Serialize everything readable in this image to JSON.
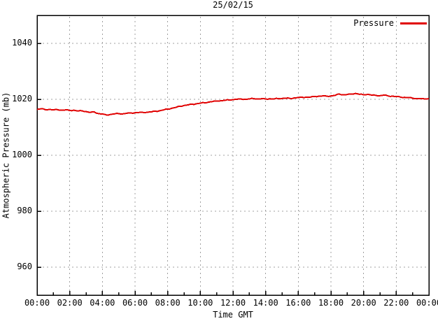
{
  "colors": {
    "line_red": "#e00000",
    "grid_gray": "#a0a0a0",
    "border_black": "#000000",
    "background": "#ffffff"
  },
  "chart_data": {
    "type": "line",
    "title": "25/02/15",
    "xlabel": "Time GMT",
    "ylabel": "Atmospheric Pressure (mb)",
    "legend_position": "top-right-inside",
    "grid": true,
    "xlim_hours": [
      0,
      24
    ],
    "ylim": [
      950,
      1050
    ],
    "yticks": [
      960,
      980,
      1000,
      1020,
      1040
    ],
    "xticks": [
      {
        "hour": 0,
        "label": "00:00"
      },
      {
        "hour": 2,
        "label": "02:00"
      },
      {
        "hour": 4,
        "label": "04:00"
      },
      {
        "hour": 6,
        "label": "06:00"
      },
      {
        "hour": 8,
        "label": "08:00"
      },
      {
        "hour": 10,
        "label": "10:00"
      },
      {
        "hour": 12,
        "label": "12:00"
      },
      {
        "hour": 14,
        "label": "14:00"
      },
      {
        "hour": 16,
        "label": "16:00"
      },
      {
        "hour": 18,
        "label": "18:00"
      },
      {
        "hour": 20,
        "label": "20:00"
      },
      {
        "hour": 22,
        "label": "22:00"
      },
      {
        "hour": 24,
        "label": "00:00"
      }
    ],
    "minor_xtick_interval_hours": 1,
    "noise_amplitude_mb": 0.12,
    "series": [
      {
        "name": "Pressure",
        "color": "#e00000",
        "points": [
          [
            0,
            1016.4
          ],
          [
            0.25,
            1016.6
          ],
          [
            0.5,
            1016.3
          ],
          [
            0.75,
            1016.4
          ],
          [
            1,
            1016.2
          ],
          [
            1.25,
            1016.3
          ],
          [
            1.5,
            1016.1
          ],
          [
            1.75,
            1016.2
          ],
          [
            2,
            1016.0
          ],
          [
            2.25,
            1016.1
          ],
          [
            2.5,
            1015.8
          ],
          [
            2.75,
            1015.9
          ],
          [
            3,
            1015.6
          ],
          [
            3.25,
            1015.3
          ],
          [
            3.5,
            1015.5
          ],
          [
            3.75,
            1014.9
          ],
          [
            4,
            1014.7
          ],
          [
            4.25,
            1014.4
          ],
          [
            4.5,
            1014.6
          ],
          [
            4.75,
            1014.8
          ],
          [
            5,
            1014.9
          ],
          [
            5.25,
            1014.8
          ],
          [
            5.5,
            1015.0
          ],
          [
            5.75,
            1015.1
          ],
          [
            6,
            1015.2
          ],
          [
            6.25,
            1015.3
          ],
          [
            6.5,
            1015.3
          ],
          [
            6.75,
            1015.4
          ],
          [
            7,
            1015.5
          ],
          [
            7.25,
            1015.7
          ],
          [
            7.5,
            1015.9
          ],
          [
            7.75,
            1016.2
          ],
          [
            8,
            1016.5
          ],
          [
            8.25,
            1016.8
          ],
          [
            8.5,
            1017.1
          ],
          [
            8.75,
            1017.5
          ],
          [
            9,
            1017.8
          ],
          [
            9.25,
            1018.0
          ],
          [
            9.5,
            1018.2
          ],
          [
            9.75,
            1018.4
          ],
          [
            10,
            1018.6
          ],
          [
            10.25,
            1018.8
          ],
          [
            10.5,
            1019.0
          ],
          [
            10.75,
            1019.2
          ],
          [
            11,
            1019.4
          ],
          [
            11.25,
            1019.5
          ],
          [
            11.5,
            1019.6
          ],
          [
            11.75,
            1019.8
          ],
          [
            12,
            1019.9
          ],
          [
            12.25,
            1020.0
          ],
          [
            12.5,
            1020.1
          ],
          [
            12.75,
            1020.0
          ],
          [
            13,
            1020.1
          ],
          [
            13.25,
            1020.3
          ],
          [
            13.5,
            1020.1
          ],
          [
            13.75,
            1020.2
          ],
          [
            14,
            1020.1
          ],
          [
            14.25,
            1020.2
          ],
          [
            14.5,
            1020.1
          ],
          [
            14.75,
            1020.3
          ],
          [
            15,
            1020.3
          ],
          [
            15.25,
            1020.4
          ],
          [
            15.5,
            1020.3
          ],
          [
            15.75,
            1020.5
          ],
          [
            16,
            1020.6
          ],
          [
            16.25,
            1020.7
          ],
          [
            16.5,
            1020.8
          ],
          [
            16.75,
            1020.8
          ],
          [
            17,
            1021.0
          ],
          [
            17.25,
            1021.1
          ],
          [
            17.5,
            1021.2
          ],
          [
            17.75,
            1021.1
          ],
          [
            18,
            1021.2
          ],
          [
            18.25,
            1021.4
          ],
          [
            18.5,
            1021.9
          ],
          [
            18.75,
            1021.6
          ],
          [
            19,
            1021.7
          ],
          [
            19.25,
            1021.9
          ],
          [
            19.5,
            1022.1
          ],
          [
            19.75,
            1021.8
          ],
          [
            20,
            1021.6
          ],
          [
            20.25,
            1021.8
          ],
          [
            20.5,
            1021.5
          ],
          [
            20.75,
            1021.4
          ],
          [
            21,
            1021.3
          ],
          [
            21.25,
            1021.5
          ],
          [
            21.5,
            1021.2
          ],
          [
            21.75,
            1021.1
          ],
          [
            22,
            1021.0
          ],
          [
            22.25,
            1020.8
          ],
          [
            22.5,
            1020.7
          ],
          [
            22.75,
            1020.6
          ],
          [
            23,
            1020.4
          ],
          [
            23.25,
            1020.3
          ],
          [
            23.5,
            1020.2
          ],
          [
            23.75,
            1020.1
          ],
          [
            24,
            1020.3
          ]
        ]
      }
    ]
  }
}
